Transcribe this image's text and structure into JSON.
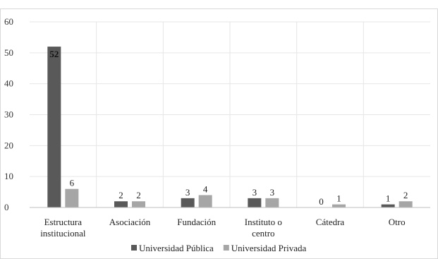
{
  "chart_data": {
    "type": "bar",
    "categories": [
      [
        "Estructura",
        "institucional"
      ],
      [
        "Asociación"
      ],
      [
        "Fundación"
      ],
      [
        "Instituto o",
        "centro"
      ],
      [
        "Cátedra"
      ],
      [
        "Otro"
      ]
    ],
    "series": [
      {
        "name": "Universidad Pública",
        "values": [
          52,
          2,
          3,
          3,
          0,
          1
        ],
        "color": "#595959"
      },
      {
        "name": "Universidad Privada",
        "values": [
          6,
          2,
          4,
          3,
          1,
          2
        ],
        "color": "#a6a6a6"
      }
    ],
    "ylim": [
      0,
      60
    ],
    "yticks": [
      "0",
      "10",
      "20",
      "30",
      "40",
      "50",
      "60"
    ],
    "grid": true,
    "legend": "bottom"
  }
}
